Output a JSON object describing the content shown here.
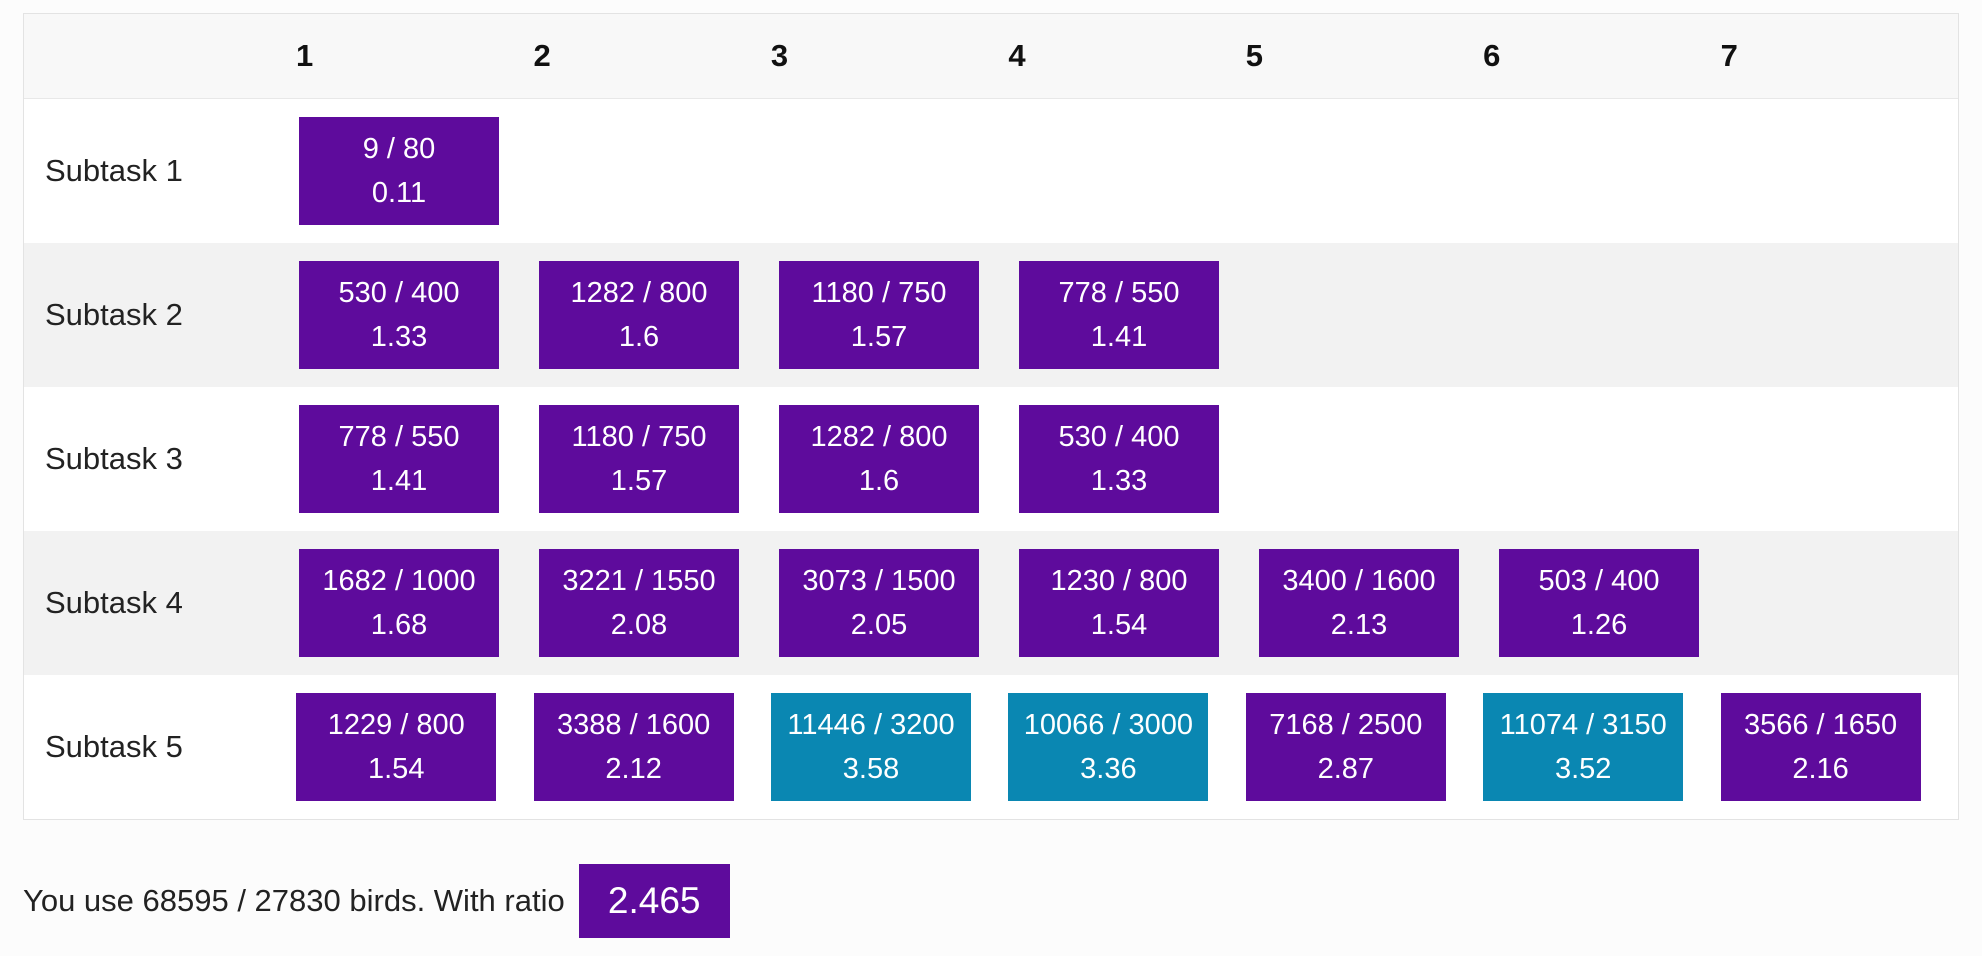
{
  "columns": [
    "1",
    "2",
    "3",
    "4",
    "5",
    "6",
    "7"
  ],
  "colors": {
    "purple": "#5e0b9c",
    "teal": "#0a87b2"
  },
  "rows": [
    {
      "label": "Subtask 1",
      "cells": [
        {
          "fraction": "9 / 80",
          "ratio": "0.11",
          "color": "purple"
        }
      ]
    },
    {
      "label": "Subtask 2",
      "cells": [
        {
          "fraction": "530 / 400",
          "ratio": "1.33",
          "color": "purple"
        },
        {
          "fraction": "1282 / 800",
          "ratio": "1.6",
          "color": "purple"
        },
        {
          "fraction": "1180 / 750",
          "ratio": "1.57",
          "color": "purple"
        },
        {
          "fraction": "778 / 550",
          "ratio": "1.41",
          "color": "purple"
        }
      ]
    },
    {
      "label": "Subtask 3",
      "cells": [
        {
          "fraction": "778 / 550",
          "ratio": "1.41",
          "color": "purple"
        },
        {
          "fraction": "1180 / 750",
          "ratio": "1.57",
          "color": "purple"
        },
        {
          "fraction": "1282 / 800",
          "ratio": "1.6",
          "color": "purple"
        },
        {
          "fraction": "530 / 400",
          "ratio": "1.33",
          "color": "purple"
        }
      ]
    },
    {
      "label": "Subtask 4",
      "cells": [
        {
          "fraction": "1682 / 1000",
          "ratio": "1.68",
          "color": "purple"
        },
        {
          "fraction": "3221 / 1550",
          "ratio": "2.08",
          "color": "purple"
        },
        {
          "fraction": "3073 / 1500",
          "ratio": "2.05",
          "color": "purple"
        },
        {
          "fraction": "1230 / 800",
          "ratio": "1.54",
          "color": "purple"
        },
        {
          "fraction": "3400 / 1600",
          "ratio": "2.13",
          "color": "purple"
        },
        {
          "fraction": "503 / 400",
          "ratio": "1.26",
          "color": "purple"
        }
      ]
    },
    {
      "label": "Subtask 5",
      "cells": [
        {
          "fraction": "1229 / 800",
          "ratio": "1.54",
          "color": "purple"
        },
        {
          "fraction": "3388 / 1600",
          "ratio": "2.12",
          "color": "purple"
        },
        {
          "fraction": "11446 / 3200",
          "ratio": "3.58",
          "color": "teal"
        },
        {
          "fraction": "10066 / 3000",
          "ratio": "3.36",
          "color": "teal"
        },
        {
          "fraction": "7168 / 2500",
          "ratio": "2.87",
          "color": "purple"
        },
        {
          "fraction": "11074 / 3150",
          "ratio": "3.52",
          "color": "teal"
        },
        {
          "fraction": "3566 / 1650",
          "ratio": "2.16",
          "color": "purple"
        }
      ]
    }
  ],
  "summary": {
    "text": "You use 68595 / 27830 birds. With ratio",
    "ratio": "2.465"
  }
}
